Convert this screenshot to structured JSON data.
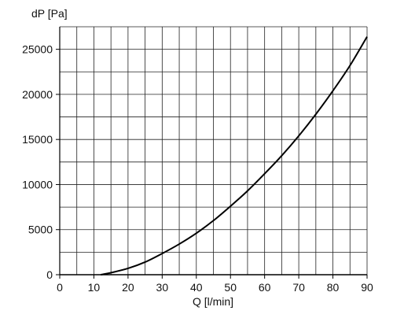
{
  "chart_data": {
    "type": "line",
    "xlabel": "Q [l/min]",
    "ylabel": "dP [Pa]",
    "xlim": [
      0,
      90
    ],
    "ylim": [
      0,
      27500
    ],
    "grid": true,
    "x_minor_grid": 5,
    "y_minor_grid": 2500,
    "x_ticks": [
      0,
      10,
      20,
      30,
      40,
      50,
      60,
      70,
      80,
      90
    ],
    "y_ticks": [
      0,
      5000,
      10000,
      15000,
      20000,
      25000
    ],
    "series": [
      {
        "color": "#000000",
        "x": [
          12,
          15,
          20,
          25,
          30,
          35,
          40,
          45,
          50,
          55,
          60,
          65,
          70,
          75,
          80,
          85,
          90
        ],
        "y": [
          0,
          220,
          700,
          1400,
          2350,
          3400,
          4600,
          6000,
          7600,
          9300,
          11200,
          13200,
          15400,
          17800,
          20400,
          23200,
          26400
        ]
      }
    ]
  }
}
